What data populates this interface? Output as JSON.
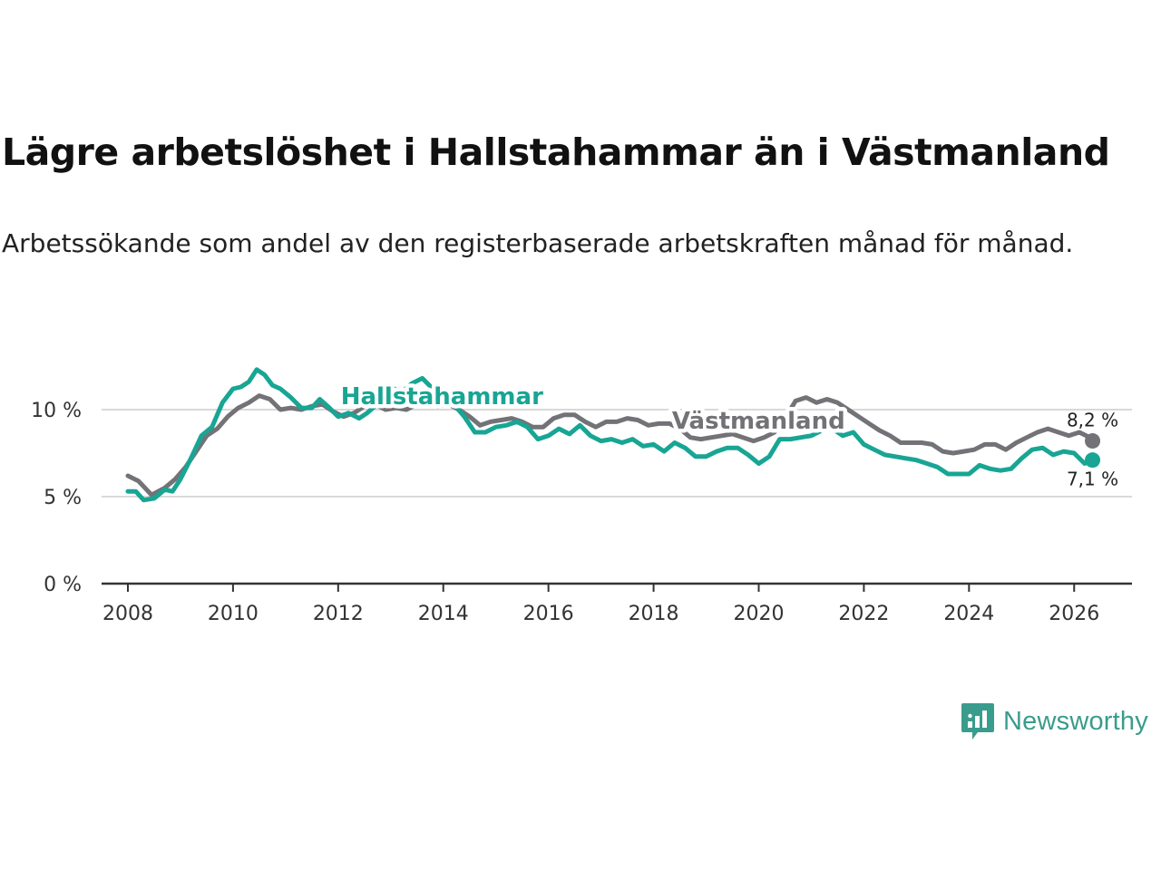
{
  "title": "Lägre arbetslöshet i Hallstahammar än i Västmanland",
  "subtitle": "Arbetssökande som andel av den registerbaserade arbetskraften månad för månad.",
  "brand": {
    "name": "Newsworthy",
    "icon": "newsworthy-logo-icon"
  },
  "colors": {
    "hallstahammar": "#18a594",
    "vastmanland": "#737276",
    "grid": "#d9d9d9",
    "axis": "#333333"
  },
  "chart_data": {
    "type": "line",
    "title": "Lägre arbetslöshet i Hallstahammar än i Västmanland",
    "xlabel": "",
    "ylabel": "",
    "xlim": [
      2007.5,
      2027.1
    ],
    "ylim": [
      0,
      12.5
    ],
    "x_ticks": [
      2008,
      2010,
      2012,
      2014,
      2016,
      2018,
      2020,
      2022,
      2024,
      2026
    ],
    "x_tick_labels": [
      "2008",
      "2010",
      "2012",
      "2014",
      "2016",
      "2018",
      "2020",
      "2022",
      "2024",
      "2026"
    ],
    "y_ticks": [
      0,
      5,
      10
    ],
    "y_tick_labels": [
      "0 %",
      "5 %",
      "10 %"
    ],
    "grid": true,
    "series": [
      {
        "name": "Hallstahammar",
        "label": "Hallstahammar",
        "end_label": "7,1 %",
        "points": [
          [
            2008.0,
            5.3
          ],
          [
            2008.15,
            5.3
          ],
          [
            2008.3,
            4.8
          ],
          [
            2008.5,
            4.9
          ],
          [
            2008.7,
            5.4
          ],
          [
            2008.85,
            5.3
          ],
          [
            2009.0,
            6.0
          ],
          [
            2009.2,
            7.2
          ],
          [
            2009.4,
            8.5
          ],
          [
            2009.6,
            9.0
          ],
          [
            2009.8,
            10.4
          ],
          [
            2010.0,
            11.2
          ],
          [
            2010.15,
            11.3
          ],
          [
            2010.3,
            11.6
          ],
          [
            2010.45,
            12.3
          ],
          [
            2010.6,
            12.0
          ],
          [
            2010.75,
            11.4
          ],
          [
            2010.9,
            11.2
          ],
          [
            2011.1,
            10.7
          ],
          [
            2011.3,
            10.1
          ],
          [
            2011.5,
            10.1
          ],
          [
            2011.65,
            10.6
          ],
          [
            2011.8,
            10.2
          ],
          [
            2012.0,
            9.6
          ],
          [
            2012.2,
            9.8
          ],
          [
            2012.4,
            9.5
          ],
          [
            2012.55,
            9.8
          ],
          [
            2012.7,
            10.2
          ],
          [
            2012.85,
            10.6
          ],
          [
            2013.0,
            11.3
          ],
          [
            2013.2,
            11.0
          ],
          [
            2013.4,
            11.5
          ],
          [
            2013.6,
            11.8
          ],
          [
            2013.8,
            11.2
          ],
          [
            2014.0,
            10.9
          ],
          [
            2014.2,
            10.3
          ],
          [
            2014.4,
            9.6
          ],
          [
            2014.6,
            8.7
          ],
          [
            2014.8,
            8.7
          ],
          [
            2015.0,
            9.0
          ],
          [
            2015.2,
            9.1
          ],
          [
            2015.4,
            9.3
          ],
          [
            2015.6,
            9.0
          ],
          [
            2015.8,
            8.3
          ],
          [
            2016.0,
            8.5
          ],
          [
            2016.2,
            8.9
          ],
          [
            2016.4,
            8.6
          ],
          [
            2016.6,
            9.1
          ],
          [
            2016.8,
            8.5
          ],
          [
            2017.0,
            8.2
          ],
          [
            2017.2,
            8.3
          ],
          [
            2017.4,
            8.1
          ],
          [
            2017.6,
            8.3
          ],
          [
            2017.8,
            7.9
          ],
          [
            2018.0,
            8.0
          ],
          [
            2018.2,
            7.6
          ],
          [
            2018.4,
            8.1
          ],
          [
            2018.6,
            7.8
          ],
          [
            2018.8,
            7.3
          ],
          [
            2019.0,
            7.3
          ],
          [
            2019.2,
            7.6
          ],
          [
            2019.4,
            7.8
          ],
          [
            2019.6,
            7.8
          ],
          [
            2019.8,
            7.4
          ],
          [
            2020.0,
            6.9
          ],
          [
            2020.2,
            7.3
          ],
          [
            2020.4,
            8.3
          ],
          [
            2020.6,
            8.3
          ],
          [
            2020.8,
            8.4
          ],
          [
            2021.0,
            8.5
          ],
          [
            2021.2,
            8.8
          ],
          [
            2021.4,
            8.9
          ],
          [
            2021.6,
            8.5
          ],
          [
            2021.8,
            8.7
          ],
          [
            2022.0,
            8.0
          ],
          [
            2022.2,
            7.7
          ],
          [
            2022.4,
            7.4
          ],
          [
            2022.6,
            7.3
          ],
          [
            2022.8,
            7.2
          ],
          [
            2023.0,
            7.1
          ],
          [
            2023.2,
            6.9
          ],
          [
            2023.4,
            6.7
          ],
          [
            2023.6,
            6.3
          ],
          [
            2023.8,
            6.3
          ],
          [
            2024.0,
            6.3
          ],
          [
            2024.2,
            6.8
          ],
          [
            2024.4,
            6.6
          ],
          [
            2024.6,
            6.5
          ],
          [
            2024.8,
            6.6
          ],
          [
            2025.0,
            7.2
          ],
          [
            2025.2,
            7.7
          ],
          [
            2025.4,
            7.8
          ],
          [
            2025.6,
            7.4
          ],
          [
            2025.8,
            7.6
          ],
          [
            2026.0,
            7.5
          ],
          [
            2026.2,
            6.9
          ],
          [
            2026.35,
            7.1
          ]
        ]
      },
      {
        "name": "Västmanland",
        "label": "Västmanland",
        "end_label": "8,2 %",
        "points": [
          [
            2008.0,
            6.2
          ],
          [
            2008.2,
            5.9
          ],
          [
            2008.45,
            5.1
          ],
          [
            2008.7,
            5.5
          ],
          [
            2008.9,
            6.0
          ],
          [
            2009.1,
            6.7
          ],
          [
            2009.3,
            7.6
          ],
          [
            2009.5,
            8.5
          ],
          [
            2009.7,
            8.9
          ],
          [
            2009.9,
            9.6
          ],
          [
            2010.1,
            10.1
          ],
          [
            2010.3,
            10.4
          ],
          [
            2010.5,
            10.8
          ],
          [
            2010.7,
            10.6
          ],
          [
            2010.9,
            10.0
          ],
          [
            2011.1,
            10.1
          ],
          [
            2011.3,
            10.0
          ],
          [
            2011.5,
            10.2
          ],
          [
            2011.7,
            10.3
          ],
          [
            2011.9,
            9.9
          ],
          [
            2012.1,
            9.6
          ],
          [
            2012.3,
            9.8
          ],
          [
            2012.5,
            10.2
          ],
          [
            2012.7,
            10.3
          ],
          [
            2012.9,
            10.0
          ],
          [
            2013.1,
            10.1
          ],
          [
            2013.3,
            10.0
          ],
          [
            2013.5,
            10.3
          ],
          [
            2013.7,
            10.4
          ],
          [
            2013.9,
            10.2
          ],
          [
            2014.1,
            10.3
          ],
          [
            2014.3,
            10.0
          ],
          [
            2014.5,
            9.6
          ],
          [
            2014.7,
            9.1
          ],
          [
            2014.9,
            9.3
          ],
          [
            2015.1,
            9.4
          ],
          [
            2015.3,
            9.5
          ],
          [
            2015.5,
            9.3
          ],
          [
            2015.7,
            9.0
          ],
          [
            2015.9,
            9.0
          ],
          [
            2016.1,
            9.5
          ],
          [
            2016.3,
            9.7
          ],
          [
            2016.5,
            9.7
          ],
          [
            2016.7,
            9.3
          ],
          [
            2016.9,
            9.0
          ],
          [
            2017.1,
            9.3
          ],
          [
            2017.3,
            9.3
          ],
          [
            2017.5,
            9.5
          ],
          [
            2017.7,
            9.4
          ],
          [
            2017.9,
            9.1
          ],
          [
            2018.1,
            9.2
          ],
          [
            2018.3,
            9.2
          ],
          [
            2018.5,
            8.9
          ],
          [
            2018.7,
            8.4
          ],
          [
            2018.9,
            8.3
          ],
          [
            2019.1,
            8.4
          ],
          [
            2019.3,
            8.5
          ],
          [
            2019.5,
            8.6
          ],
          [
            2019.7,
            8.4
          ],
          [
            2019.9,
            8.2
          ],
          [
            2020.1,
            8.4
          ],
          [
            2020.3,
            8.7
          ],
          [
            2020.5,
            9.5
          ],
          [
            2020.7,
            10.5
          ],
          [
            2020.9,
            10.7
          ],
          [
            2021.1,
            10.4
          ],
          [
            2021.3,
            10.6
          ],
          [
            2021.5,
            10.4
          ],
          [
            2021.7,
            10.0
          ],
          [
            2021.9,
            9.6
          ],
          [
            2022.1,
            9.2
          ],
          [
            2022.3,
            8.8
          ],
          [
            2022.5,
            8.5
          ],
          [
            2022.7,
            8.1
          ],
          [
            2022.9,
            8.1
          ],
          [
            2023.1,
            8.1
          ],
          [
            2023.3,
            8.0
          ],
          [
            2023.5,
            7.6
          ],
          [
            2023.7,
            7.5
          ],
          [
            2023.9,
            7.6
          ],
          [
            2024.1,
            7.7
          ],
          [
            2024.3,
            8.0
          ],
          [
            2024.5,
            8.0
          ],
          [
            2024.7,
            7.7
          ],
          [
            2024.9,
            8.1
          ],
          [
            2025.1,
            8.4
          ],
          [
            2025.3,
            8.7
          ],
          [
            2025.5,
            8.9
          ],
          [
            2025.7,
            8.7
          ],
          [
            2025.9,
            8.5
          ],
          [
            2026.1,
            8.7
          ],
          [
            2026.3,
            8.4
          ],
          [
            2026.35,
            8.2
          ]
        ]
      }
    ]
  }
}
